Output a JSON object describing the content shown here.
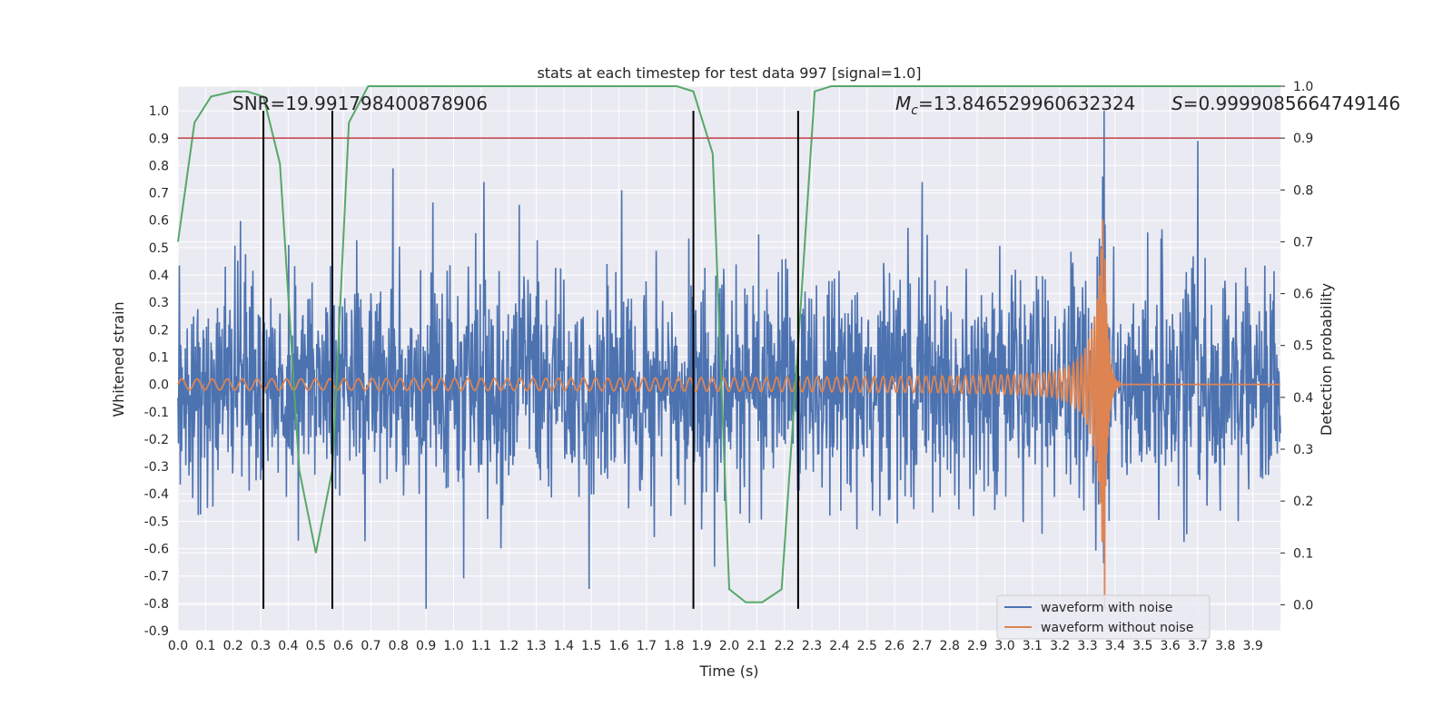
{
  "chart_data": {
    "type": "line",
    "title": "stats at each timestep for test data 997 [signal=1.0]",
    "xlabel": "Time (s)",
    "ylabel": "Whitened strain",
    "ylabel_right": "Detection probability",
    "xlim": [
      0.0,
      4.0
    ],
    "ylim": [
      -0.9,
      1.09
    ],
    "ylim_right": [
      -0.05,
      1.0
    ],
    "x_ticks": [
      "0.0",
      "0.1",
      "0.2",
      "0.3",
      "0.4",
      "0.5",
      "0.6",
      "0.7",
      "0.8",
      "0.9",
      "1.0",
      "1.1",
      "1.2",
      "1.3",
      "1.4",
      "1.5",
      "1.6",
      "1.7",
      "1.8",
      "1.9",
      "2.0",
      "2.1",
      "2.2",
      "2.3",
      "2.4",
      "2.5",
      "2.6",
      "2.7",
      "2.8",
      "2.9",
      "3.0",
      "3.1",
      "3.2",
      "3.3",
      "3.4",
      "3.5",
      "3.6",
      "3.7",
      "3.8",
      "3.9"
    ],
    "y_ticks": [
      "1.0",
      "0.9",
      "0.8",
      "0.7",
      "0.6",
      "0.5",
      "0.4",
      "0.3",
      "0.2",
      "0.1",
      "0.0",
      "-0.1",
      "-0.2",
      "-0.3",
      "-0.4",
      "-0.5",
      "-0.6",
      "-0.7",
      "-0.8",
      "-0.9"
    ],
    "y_ticks_right": [
      "1.0",
      "0.9",
      "0.8",
      "0.7",
      "0.6",
      "0.5",
      "0.4",
      "0.3",
      "0.2",
      "0.1",
      "0.0"
    ],
    "annotations": {
      "snr": "SNR=19.991798400878906",
      "mc_symbol": "M",
      "mc_sub": "c",
      "mc_value": "=13.846529960632324",
      "s_symbol": "S",
      "s_value": "=0.9999085664749146"
    },
    "threshold_right": 0.9,
    "vertical_lines_x": [
      0.31,
      0.56,
      1.87,
      2.25
    ],
    "vertical_lines_ylim": [
      -0.82,
      1.0
    ],
    "series": [
      {
        "name": "waveform with noise",
        "color": "#4c72b0",
        "axis": "left",
        "noise_amplitude": 0.2,
        "peak_points": [
          {
            "x": 0.78,
            "y": 0.79
          },
          {
            "x": 0.9,
            "y": -0.82
          },
          {
            "x": 1.11,
            "y": 0.74
          },
          {
            "x": 1.61,
            "y": 0.71
          },
          {
            "x": 1.9,
            "y": -0.53
          },
          {
            "x": 2.7,
            "y": 0.74
          },
          {
            "x": 3.36,
            "y": 1.0
          },
          {
            "x": 3.7,
            "y": 0.89
          }
        ]
      },
      {
        "name": "waveform without noise",
        "color": "#dd8452",
        "axis": "left",
        "chirp_start_amplitude": 0.02,
        "chirp_start_frequency_hz": 18,
        "merger_time": 3.36,
        "merger_peak": 0.66,
        "merger_min": -0.82
      },
      {
        "name": "detection probability",
        "color": "#55a868",
        "axis": "right",
        "x": [
          0.0,
          0.06,
          0.12,
          0.2,
          0.25,
          0.31,
          0.37,
          0.44,
          0.5,
          0.56,
          0.62,
          0.69,
          1.25,
          1.81,
          1.87,
          1.94,
          2.0,
          2.06,
          2.12,
          2.19,
          2.25,
          2.31,
          2.37,
          2.5,
          3.0,
          3.5,
          4.0
        ],
        "y": [
          0.7,
          0.93,
          0.98,
          0.99,
          0.99,
          0.98,
          0.85,
          0.26,
          0.1,
          0.26,
          0.93,
          1.0,
          1.0,
          1.0,
          0.99,
          0.87,
          0.03,
          0.005,
          0.005,
          0.03,
          0.5,
          0.99,
          1.0,
          1.0,
          1.0,
          1.0,
          1.0
        ]
      }
    ],
    "legend_position": "lower-right",
    "grid": true,
    "colors": {
      "background": "#eaeaf2",
      "grid": "#ffffff",
      "threshold": "#c44e52",
      "vertical_lines": "#000000"
    }
  }
}
